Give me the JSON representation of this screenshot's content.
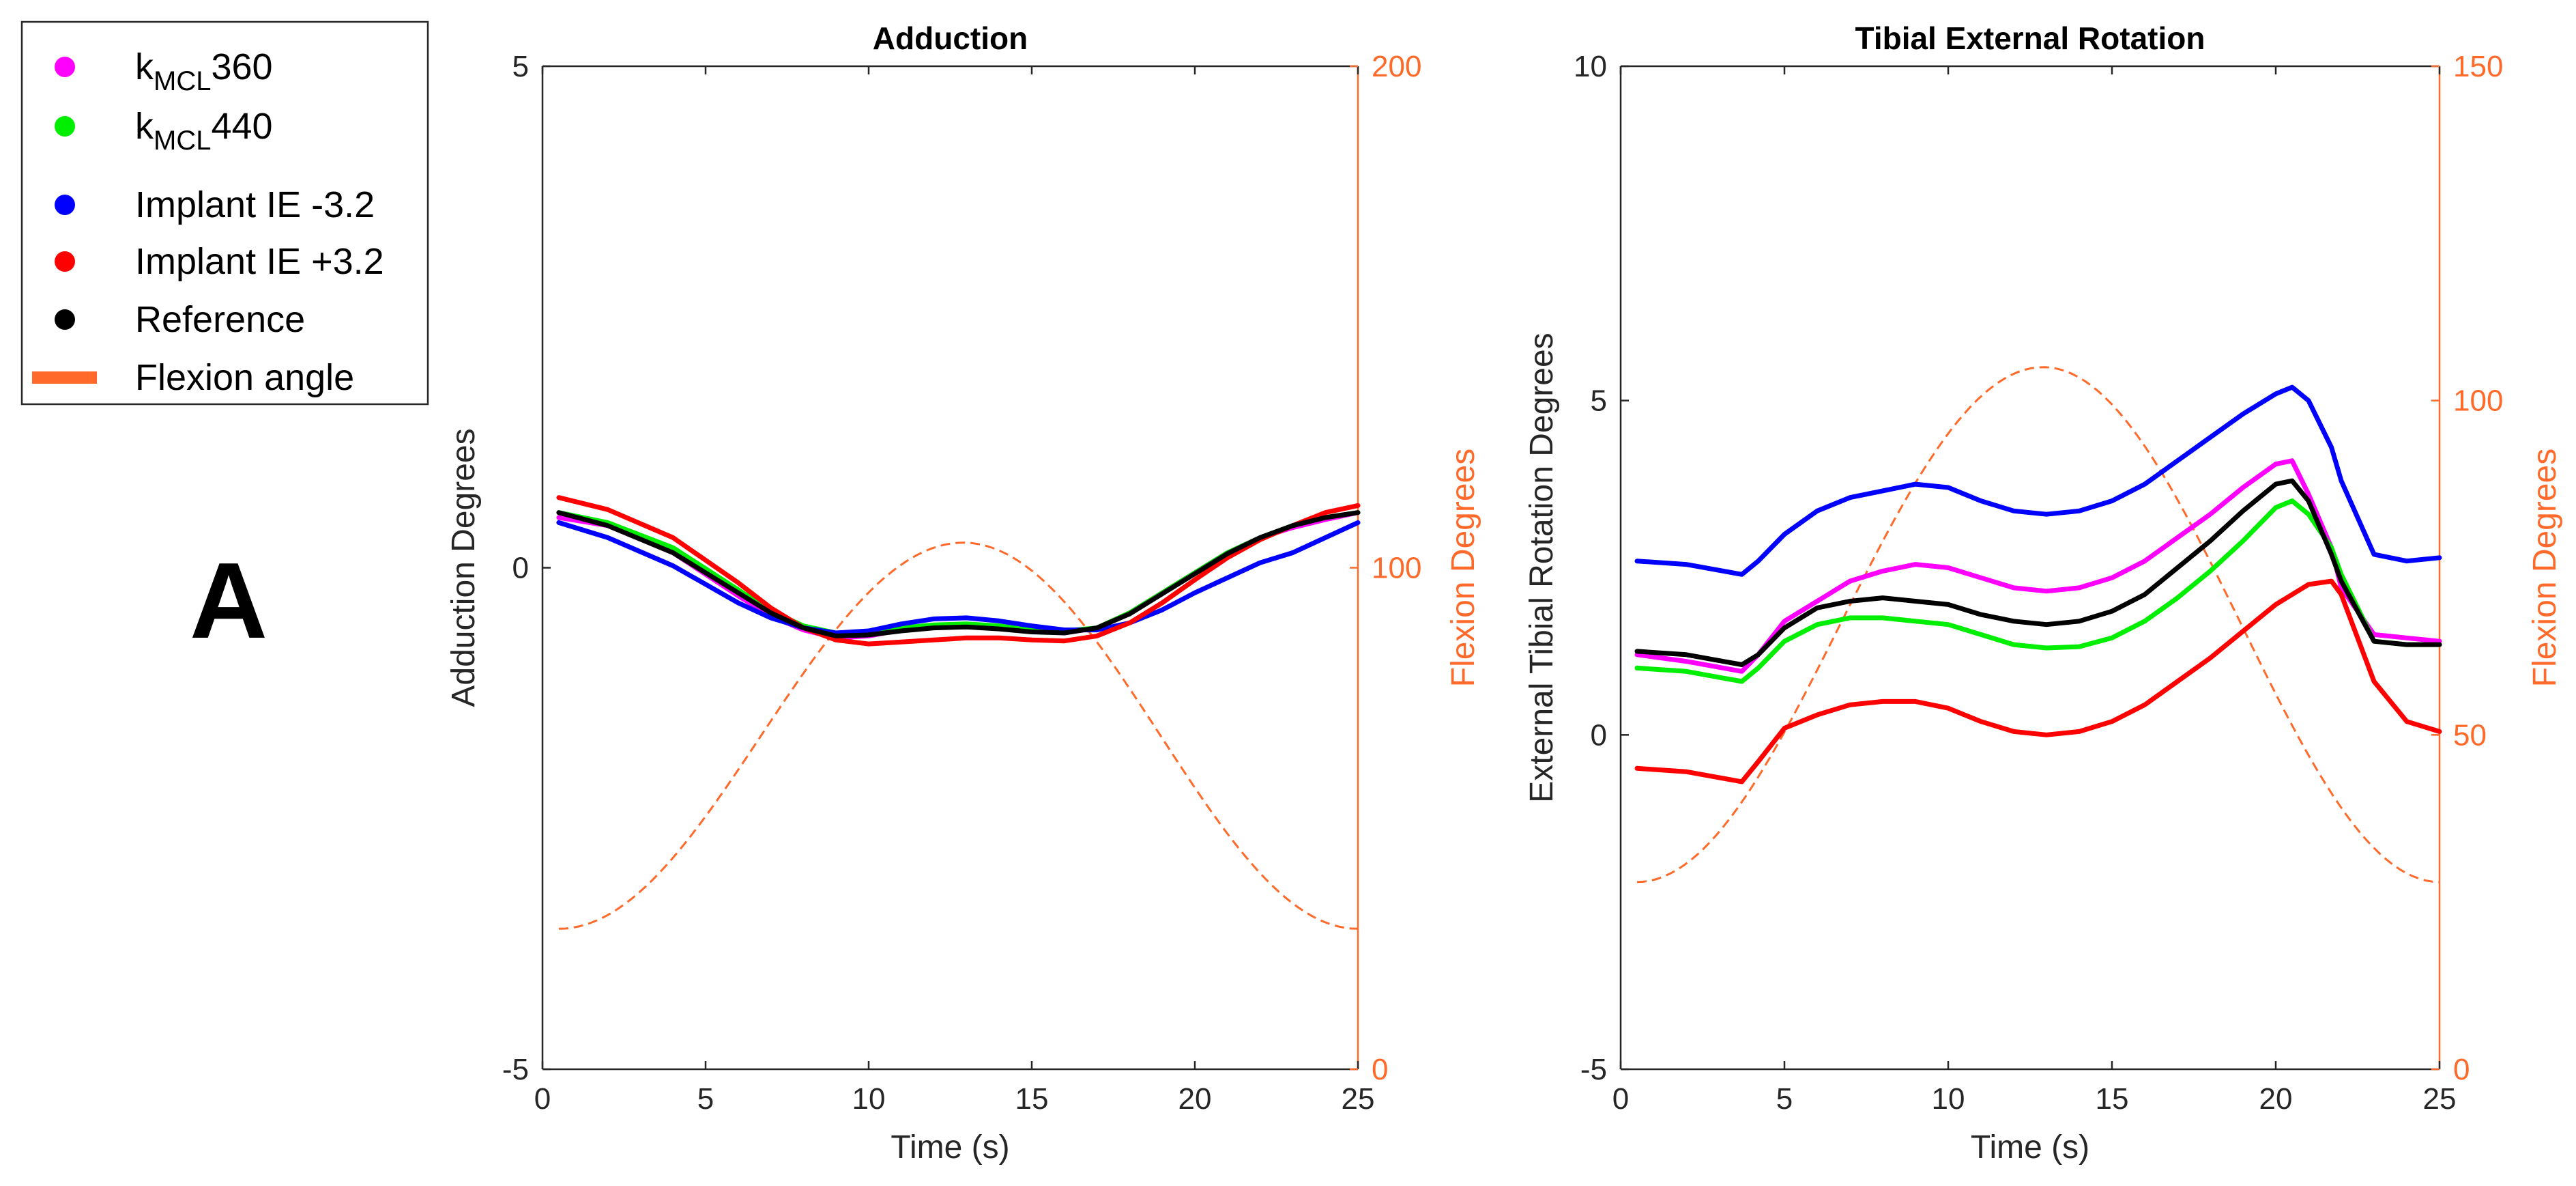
{
  "panel_label": "A",
  "legend": [
    {
      "name": "k_MCL360",
      "main": "k",
      "sub": "MCL",
      "rest": "360",
      "color": "#ff00ff",
      "marker": "dot"
    },
    {
      "name": "k_MCL440",
      "main": "k",
      "sub": "MCL",
      "rest": "440",
      "color": "#00ee00",
      "marker": "dot"
    },
    {
      "name": "Implant IE -3.2",
      "main": "Implant IE -3.2",
      "sub": "",
      "rest": "",
      "color": "#0000ff",
      "marker": "dot"
    },
    {
      "name": "Implant IE +3.2",
      "main": "Implant IE +3.2",
      "sub": "",
      "rest": "",
      "color": "#ff0000",
      "marker": "dot"
    },
    {
      "name": "Reference",
      "main": "Reference",
      "sub": "",
      "rest": "",
      "color": "#000000",
      "marker": "dot"
    },
    {
      "name": "Flexion angle",
      "main": "Flexion angle",
      "sub": "",
      "rest": "",
      "color": "#ff6a2a",
      "marker": "bar"
    }
  ],
  "chart_data": [
    {
      "type": "line",
      "title": "Adduction",
      "xlabel": "Time (s)",
      "ylabel": "Adduction Degrees",
      "y2label": "Flexion Degrees",
      "xlim": [
        0,
        25
      ],
      "ylim": [
        -5,
        5
      ],
      "y2lim": [
        0,
        200
      ],
      "xticks": [
        0,
        5,
        10,
        15,
        20,
        25
      ],
      "yticks": [
        -5,
        0,
        5
      ],
      "y2ticks": [
        0,
        100,
        200
      ],
      "x": [
        0.5,
        2,
        4,
        6,
        7,
        8,
        9,
        10,
        11,
        12,
        13,
        14,
        15,
        16,
        17,
        18,
        19,
        20,
        21,
        22,
        23,
        24,
        25
      ],
      "series": [
        {
          "name": "k_MCL360",
          "color": "#ff00ff",
          "values": [
            0.5,
            0.42,
            0.15,
            -0.28,
            -0.48,
            -0.62,
            -0.7,
            -0.68,
            -0.62,
            -0.58,
            -0.57,
            -0.6,
            -0.63,
            -0.65,
            -0.6,
            -0.45,
            -0.25,
            -0.05,
            0.15,
            0.3,
            0.4,
            0.48,
            0.55
          ]
        },
        {
          "name": "k_MCL440",
          "color": "#00ee00",
          "values": [
            0.55,
            0.45,
            0.2,
            -0.22,
            -0.43,
            -0.58,
            -0.65,
            -0.64,
            -0.6,
            -0.57,
            -0.56,
            -0.58,
            -0.62,
            -0.63,
            -0.6,
            -0.45,
            -0.25,
            -0.05,
            0.15,
            0.3,
            0.42,
            0.5,
            0.55
          ]
        },
        {
          "name": "Implant IE -3.2",
          "color": "#0000ff",
          "values": [
            0.45,
            0.3,
            0.02,
            -0.35,
            -0.5,
            -0.6,
            -0.65,
            -0.63,
            -0.56,
            -0.51,
            -0.5,
            -0.53,
            -0.58,
            -0.62,
            -0.62,
            -0.55,
            -0.42,
            -0.25,
            -0.1,
            0.05,
            0.15,
            0.3,
            0.45
          ]
        },
        {
          "name": "Implant IE +3.2",
          "color": "#ff0000",
          "values": [
            0.7,
            0.58,
            0.3,
            -0.15,
            -0.4,
            -0.6,
            -0.72,
            -0.76,
            -0.74,
            -0.72,
            -0.7,
            -0.7,
            -0.72,
            -0.73,
            -0.68,
            -0.55,
            -0.35,
            -0.12,
            0.1,
            0.28,
            0.42,
            0.55,
            0.62
          ]
        },
        {
          "name": "Reference",
          "color": "#000000",
          "values": [
            0.55,
            0.42,
            0.15,
            -0.25,
            -0.45,
            -0.6,
            -0.68,
            -0.67,
            -0.63,
            -0.6,
            -0.59,
            -0.61,
            -0.64,
            -0.65,
            -0.6,
            -0.46,
            -0.26,
            -0.06,
            0.14,
            0.3,
            0.42,
            0.5,
            0.55
          ]
        }
      ],
      "flexion": {
        "name": "Flexion angle",
        "color": "#ff6a2a",
        "dashed": true,
        "axis": "right",
        "x_start": 0.5,
        "x_end": 25,
        "x_peak": 12.9,
        "min": 28,
        "max": 105
      }
    },
    {
      "type": "line",
      "title": "Tibial External Rotation",
      "xlabel": "Time (s)",
      "ylabel": "External Tibial Rotation Degrees",
      "y2label": "Flexion Degrees",
      "xlim": [
        0,
        25
      ],
      "ylim": [
        -5,
        10
      ],
      "y2lim": [
        0,
        150
      ],
      "xticks": [
        0,
        5,
        10,
        15,
        20,
        25
      ],
      "yticks": [
        -5,
        0,
        5,
        10
      ],
      "y2ticks": [
        0,
        50,
        100,
        150
      ],
      "x": [
        0.5,
        2,
        3.7,
        4.2,
        5,
        6,
        7,
        8,
        9,
        10,
        11,
        12,
        13,
        14,
        15,
        16,
        17,
        18,
        19,
        20,
        20.5,
        21,
        21.7,
        22,
        23,
        24,
        25
      ],
      "series": [
        {
          "name": "k_MCL360",
          "color": "#ff00ff",
          "values": [
            1.2,
            1.1,
            0.95,
            1.2,
            1.7,
            2.0,
            2.3,
            2.45,
            2.55,
            2.5,
            2.35,
            2.2,
            2.15,
            2.2,
            2.35,
            2.6,
            2.95,
            3.3,
            3.7,
            4.05,
            4.1,
            3.6,
            2.8,
            2.2,
            1.5,
            1.45,
            1.4
          ]
        },
        {
          "name": "k_MCL440",
          "color": "#00ee00",
          "values": [
            1.0,
            0.95,
            0.8,
            1.0,
            1.4,
            1.65,
            1.75,
            1.75,
            1.7,
            1.65,
            1.5,
            1.35,
            1.3,
            1.32,
            1.45,
            1.7,
            2.05,
            2.45,
            2.9,
            3.4,
            3.5,
            3.3,
            2.8,
            2.4,
            1.4,
            1.35,
            1.35
          ]
        },
        {
          "name": "Implant IE -3.2",
          "color": "#0000ff",
          "values": [
            2.6,
            2.55,
            2.4,
            2.6,
            3.0,
            3.35,
            3.55,
            3.65,
            3.75,
            3.7,
            3.5,
            3.35,
            3.3,
            3.35,
            3.5,
            3.75,
            4.1,
            4.45,
            4.8,
            5.1,
            5.2,
            5.0,
            4.3,
            3.8,
            2.7,
            2.6,
            2.65
          ]
        },
        {
          "name": "Implant IE +3.2",
          "color": "#ff0000",
          "values": [
            -0.5,
            -0.55,
            -0.7,
            -0.4,
            0.1,
            0.3,
            0.45,
            0.5,
            0.5,
            0.4,
            0.2,
            0.05,
            0.0,
            0.05,
            0.2,
            0.45,
            0.8,
            1.15,
            1.55,
            1.95,
            2.1,
            2.25,
            2.3,
            2.1,
            0.8,
            0.2,
            0.05
          ]
        },
        {
          "name": "Reference",
          "color": "#000000",
          "values": [
            1.25,
            1.2,
            1.05,
            1.2,
            1.6,
            1.9,
            2.0,
            2.05,
            2.0,
            1.95,
            1.8,
            1.7,
            1.65,
            1.7,
            1.85,
            2.1,
            2.5,
            2.9,
            3.35,
            3.75,
            3.8,
            3.5,
            2.7,
            2.3,
            1.4,
            1.35,
            1.35
          ]
        }
      ],
      "flexion": {
        "name": "Flexion angle",
        "color": "#ff6a2a",
        "dashed": true,
        "axis": "right",
        "x_start": 0.5,
        "x_end": 25,
        "x_peak": 12.9,
        "min": 28,
        "max": 105
      }
    }
  ]
}
